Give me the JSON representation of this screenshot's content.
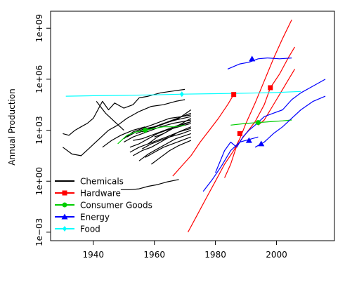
{
  "chart_data": {
    "type": "line",
    "title": "",
    "xlabel": "",
    "ylabel": "Annual Production",
    "y_scale": "log10",
    "xlim": [
      1926,
      2019
    ],
    "ylim_log10": [
      -3.5,
      10
    ],
    "grid": false,
    "legend_position": "bottom-left",
    "x_ticks": [
      {
        "value": 1940,
        "label": "1940"
      },
      {
        "value": 1960,
        "label": "1960"
      },
      {
        "value": 1980,
        "label": "1980"
      },
      {
        "value": 2000,
        "label": "2000"
      }
    ],
    "y_ticks": [
      {
        "log10": -3,
        "label": "1e−03"
      },
      {
        "log10": 0,
        "label": "1e+00"
      },
      {
        "log10": 3,
        "label": "1e+03"
      },
      {
        "log10": 6,
        "label": "1e+06"
      },
      {
        "log10": 9,
        "label": "1e+09"
      }
    ],
    "legend": [
      {
        "key": "chemicals",
        "label": "Chemicals",
        "color": "#000000",
        "marker": "none"
      },
      {
        "key": "hardware",
        "label": "Hardware",
        "color": "#ff0000",
        "marker": "square"
      },
      {
        "key": "consumer",
        "label": "Consumer Goods",
        "color": "#00cd00",
        "marker": "circle"
      },
      {
        "key": "energy",
        "label": "Energy",
        "color": "#0000ff",
        "marker": "triangle"
      },
      {
        "key": "food",
        "label": "Food",
        "color": "#00ffff",
        "marker": "diamond"
      }
    ],
    "series": [
      {
        "group": "chemicals",
        "x": [
          1930,
          1932,
          1934,
          1936,
          1938,
          1940,
          1943,
          1945,
          1947,
          1950,
          1953,
          1955,
          1958,
          1962,
          1966,
          1970
        ],
        "log10_y": [
          2.8,
          2.7,
          3.0,
          3.2,
          3.4,
          3.7,
          4.7,
          4.2,
          4.6,
          4.3,
          4.5,
          4.9,
          5.0,
          5.2,
          5.3,
          5.4
        ]
      },
      {
        "group": "chemicals",
        "x": [
          1930,
          1933,
          1936,
          1939,
          1942,
          1945,
          1948,
          1951,
          1955,
          1959,
          1963,
          1967,
          1970
        ],
        "log10_y": [
          2.0,
          1.6,
          1.5,
          2.0,
          2.5,
          3.0,
          3.3,
          3.7,
          4.1,
          4.4,
          4.5,
          4.7,
          4.8
        ]
      },
      {
        "group": "chemicals",
        "x": [
          1941,
          1944,
          1947,
          1950
        ],
        "log10_y": [
          4.7,
          4.0,
          3.5,
          3.0
        ]
      },
      {
        "group": "chemicals",
        "x": [
          1950,
          1953,
          1956,
          1959,
          1962,
          1965,
          1969,
          1972
        ],
        "log10_y": [
          2.5,
          2.9,
          3.1,
          3.3,
          3.5,
          3.7,
          3.8,
          3.9
        ]
      },
      {
        "group": "chemicals",
        "x": [
          1950,
          1953,
          1956,
          1959,
          1962,
          1966,
          1972
        ],
        "log10_y": [
          2.3,
          2.6,
          2.8,
          3.0,
          3.2,
          3.4,
          3.6
        ]
      },
      {
        "group": "chemicals",
        "x": [
          1951,
          1954,
          1957,
          1960,
          1963,
          1967,
          1972
        ],
        "log10_y": [
          2.6,
          2.9,
          3.1,
          3.2,
          3.4,
          3.6,
          3.8
        ]
      },
      {
        "group": "chemicals",
        "x": [
          1952,
          1955,
          1958,
          1961,
          1964,
          1968,
          1972
        ],
        "log10_y": [
          2.0,
          2.2,
          2.5,
          2.8,
          3.0,
          3.2,
          3.4
        ]
      },
      {
        "group": "chemicals",
        "x": [
          1952,
          1955,
          1958,
          1961,
          1964,
          1968,
          1972
        ],
        "log10_y": [
          1.7,
          2.0,
          2.2,
          2.4,
          2.6,
          2.9,
          3.1
        ]
      },
      {
        "group": "chemicals",
        "x": [
          1953,
          1956,
          1959,
          1962,
          1965,
          1968,
          1972
        ],
        "log10_y": [
          2.4,
          2.5,
          2.7,
          2.9,
          3.1,
          3.3,
          3.5
        ]
      },
      {
        "group": "chemicals",
        "x": [
          1953,
          1956,
          1959,
          1962,
          1965,
          1969,
          1972
        ],
        "log10_y": [
          1.5,
          1.8,
          2.0,
          2.3,
          2.6,
          2.8,
          3.0
        ]
      },
      {
        "group": "chemicals",
        "x": [
          1954,
          1957,
          1960,
          1963,
          1966,
          1969,
          1972
        ],
        "log10_y": [
          2.8,
          3.0,
          3.2,
          3.4,
          3.6,
          3.8,
          4.0
        ]
      },
      {
        "group": "chemicals",
        "x": [
          1955,
          1958,
          1961,
          1964,
          1967,
          1972
        ],
        "log10_y": [
          1.2,
          1.6,
          1.9,
          2.2,
          2.5,
          2.8
        ]
      },
      {
        "group": "chemicals",
        "x": [
          1956,
          1959,
          1962,
          1965,
          1968,
          1972
        ],
        "log10_y": [
          1.9,
          2.2,
          2.4,
          2.6,
          2.9,
          3.2
        ]
      },
      {
        "group": "chemicals",
        "x": [
          1956,
          1959,
          1962,
          1965,
          1968,
          1972
        ],
        "log10_y": [
          2.9,
          3.1,
          3.3,
          3.5,
          3.7,
          4.2
        ]
      },
      {
        "group": "chemicals",
        "x": [
          1957,
          1960,
          1963,
          1966,
          1969,
          1972
        ],
        "log10_y": [
          1.4,
          1.7,
          2.0,
          2.2,
          2.4,
          2.6
        ]
      },
      {
        "group": "chemicals",
        "x": [
          1958,
          1961,
          1964,
          1967,
          1972
        ],
        "log10_y": [
          2.2,
          2.6,
          2.9,
          3.2,
          3.7
        ]
      },
      {
        "group": "chemicals",
        "x": [
          1959,
          1962,
          1965,
          1968,
          1972
        ],
        "log10_y": [
          1.0,
          1.4,
          1.8,
          2.1,
          2.4
        ]
      },
      {
        "group": "chemicals",
        "x": [
          1960,
          1963,
          1966,
          1969,
          1972
        ],
        "log10_y": [
          2.6,
          2.8,
          3.1,
          3.3,
          3.5
        ]
      },
      {
        "group": "chemicals",
        "x": [
          1943,
          1946,
          1949,
          1953,
          1957
        ],
        "log10_y": [
          2.0,
          2.4,
          2.7,
          3.0,
          3.2
        ]
      },
      {
        "group": "chemicals",
        "x": [
          1949,
          1952,
          1955,
          1958,
          1961,
          1964,
          1968
        ],
        "log10_y": [
          -0.5,
          -0.5,
          -0.45,
          -0.3,
          -0.2,
          -0.05,
          0.1
        ]
      },
      {
        "group": "hardware",
        "x": [
          1966,
          1969,
          1972,
          1975,
          1978,
          1981,
          1984,
          1986
        ],
        "log10_y": [
          0.3,
          0.9,
          1.5,
          2.3,
          3.0,
          3.7,
          4.5,
          5.1
        ],
        "markers": [
          {
            "x": 1986,
            "log10_y": 5.1
          }
        ]
      },
      {
        "group": "hardware",
        "x": [
          1971,
          1974,
          1977,
          1980,
          1983,
          1986,
          1988,
          1990,
          1993,
          1996,
          1999,
          2002,
          2005
        ],
        "log10_y": [
          -3.0,
          -2.0,
          -1.0,
          0.0,
          1.0,
          1.8,
          2.5,
          3.4,
          4.6,
          5.9,
          7.2,
          8.4,
          9.5
        ]
      },
      {
        "group": "hardware",
        "x": [
          1983,
          1985,
          1987,
          1990,
          1993,
          1996,
          1998,
          2001,
          2004,
          2006
        ],
        "log10_y": [
          0.2,
          1.0,
          2.1,
          2.8,
          3.5,
          4.5,
          5.5,
          6.3,
          7.3,
          7.9
        ],
        "markers": [
          {
            "x": 1988,
            "log10_y": 2.8
          },
          {
            "x": 1998,
            "log10_y": 5.5
          }
        ]
      },
      {
        "group": "hardware",
        "x": [
          1994,
          1996,
          1998,
          2000,
          2002,
          2004,
          2006
        ],
        "log10_y": [
          3.3,
          3.6,
          4.2,
          4.8,
          5.4,
          6.0,
          6.6
        ]
      },
      {
        "group": "consumer",
        "x": [
          1948,
          1951,
          1954,
          1957,
          1960,
          1963,
          1967,
          1970
        ],
        "log10_y": [
          2.2,
          2.7,
          2.9,
          3.0,
          3.1,
          3.2,
          3.2,
          3.3
        ],
        "markers": [
          {
            "x": 1957,
            "log10_y": 3.0
          }
        ]
      },
      {
        "group": "consumer",
        "x": [
          1985,
          1990,
          1994,
          1998,
          2002,
          2005
        ],
        "log10_y": [
          3.3,
          3.4,
          3.45,
          3.5,
          3.55,
          3.6
        ],
        "markers": [
          {
            "x": 1994,
            "log10_y": 3.45
          }
        ]
      },
      {
        "group": "energy",
        "x": [
          1984,
          1988,
          1991,
          1994,
          1997,
          2001,
          2005
        ],
        "log10_y": [
          6.6,
          6.9,
          7.0,
          7.2,
          7.25,
          7.2,
          7.25
        ],
        "markers": [
          {
            "x": 1992,
            "log10_y": 7.2
          }
        ]
      },
      {
        "group": "energy",
        "x": [
          1976,
          1979,
          1982,
          1985,
          1988,
          1990,
          1992,
          1994
        ],
        "log10_y": [
          -0.6,
          0.1,
          0.9,
          1.8,
          2.3,
          2.4,
          2.5,
          2.6
        ],
        "markers": [
          {
            "x": 1991,
            "log10_y": 2.4
          }
        ]
      },
      {
        "group": "energy",
        "x": [
          1980,
          1983,
          1985,
          1987,
          1989,
          1991,
          1993,
          1996,
          1999,
          2002,
          2005,
          2008,
          2012,
          2016
        ],
        "log10_y": [
          0.5,
          1.8,
          2.3,
          2.0,
          2.6,
          3.0,
          3.3,
          3.8,
          4.0,
          4.2,
          4.8,
          5.2,
          5.6,
          6.0
        ]
      },
      {
        "group": "energy",
        "x": [
          1993,
          1996,
          1999,
          2002,
          2005,
          2008,
          2012,
          2016
        ],
        "log10_y": [
          2.0,
          2.3,
          2.8,
          3.2,
          3.7,
          4.2,
          4.7,
          5.0
        ],
        "markers": [
          {
            "x": 1995,
            "log10_y": 2.2
          }
        ]
      },
      {
        "group": "food",
        "x": [
          1931,
          1940,
          1950,
          1960,
          1969,
          1980,
          1990,
          2000,
          2008
        ],
        "log10_y": [
          5.0,
          5.03,
          5.05,
          5.08,
          5.12,
          5.15,
          5.18,
          5.22,
          5.28
        ],
        "markers": [
          {
            "x": 1969,
            "log10_y": 5.12
          }
        ]
      }
    ]
  }
}
